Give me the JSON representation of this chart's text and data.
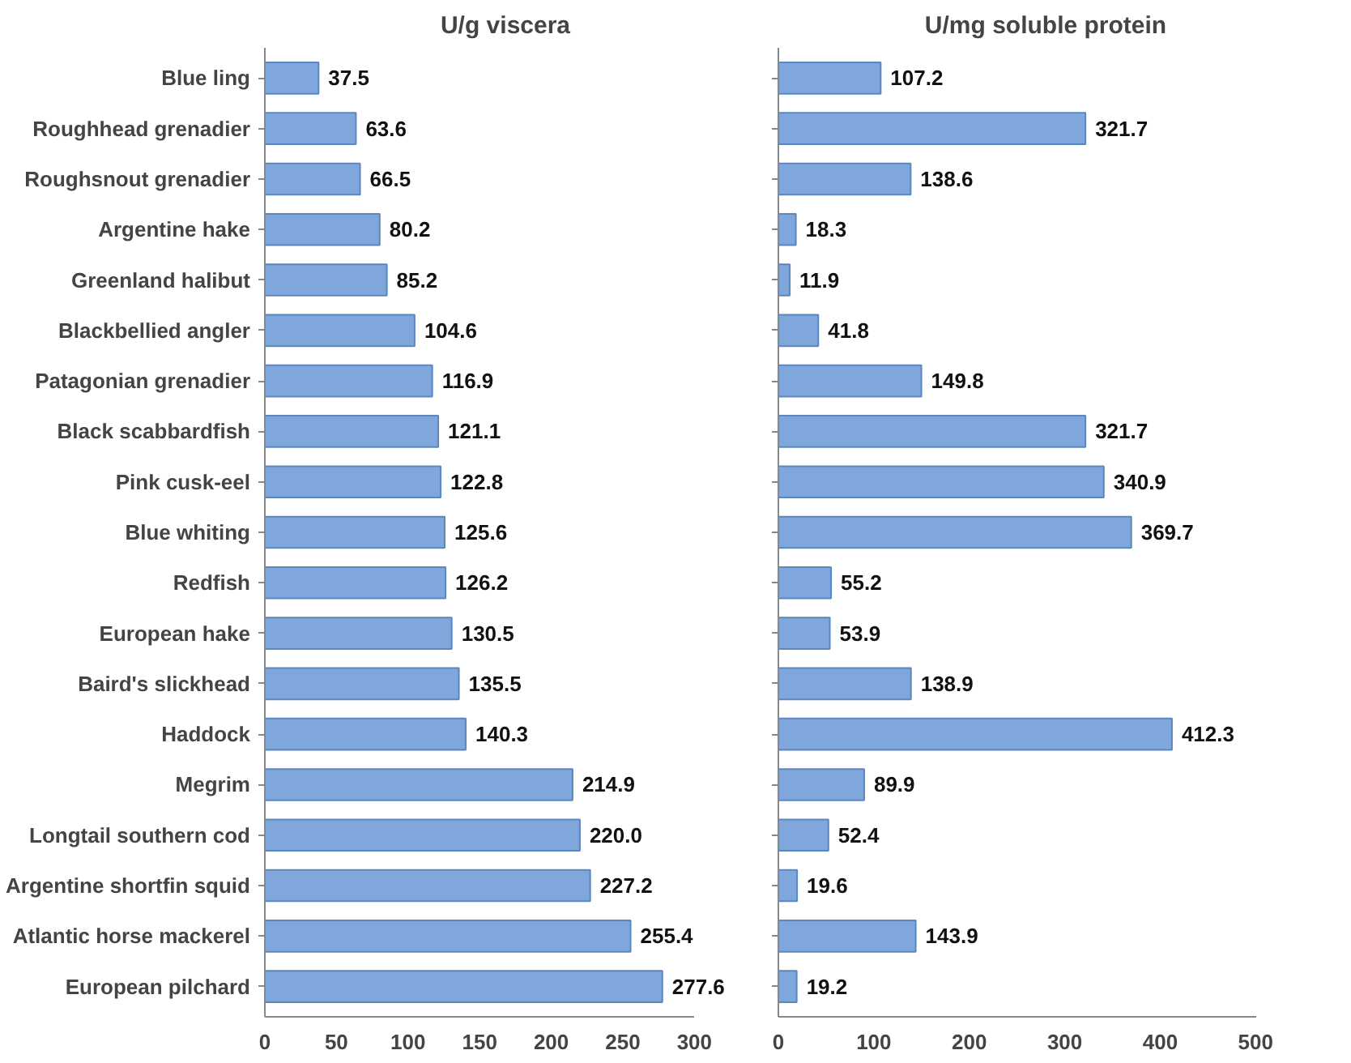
{
  "chart_data": [
    {
      "type": "bar",
      "orientation": "horizontal",
      "title": "U/g viscera",
      "categories": [
        "Blue ling",
        "Roughhead grenadier",
        "Roughsnout grenadier",
        "Argentine hake",
        "Greenland halibut",
        "Blackbellied angler",
        "Patagonian grenadier",
        "Black scabbardfish",
        "Pink cusk-eel",
        "Blue whiting",
        "Redfish",
        "European hake",
        "Baird's slickhead",
        "Haddock",
        "Megrim",
        "Longtail southern cod",
        "Argentine shortfin squid",
        "Atlantic horse mackerel",
        "European pilchard"
      ],
      "values": [
        37.5,
        63.6,
        66.5,
        80.2,
        85.2,
        104.6,
        116.9,
        121.1,
        122.8,
        125.6,
        126.2,
        130.5,
        135.5,
        140.3,
        214.9,
        220.0,
        227.2,
        255.4,
        277.6
      ],
      "value_labels": [
        "37.5",
        "63.6",
        "66.5",
        "80.2",
        "85.2",
        "104.6",
        "116.9",
        "121.1",
        "122.8",
        "125.6",
        "126.2",
        "130.5",
        "135.5",
        "140.3",
        "214.9",
        "220.0",
        "227.2",
        "255.4",
        "277.6"
      ],
      "color": "#7fa7dc",
      "xlim": [
        0,
        300
      ],
      "xticks": [
        0,
        50,
        100,
        150,
        200,
        250,
        300
      ]
    },
    {
      "type": "bar",
      "orientation": "horizontal",
      "title": "U/mg soluble protein",
      "categories": [
        null,
        null,
        null,
        null,
        null,
        null,
        null,
        null,
        null,
        null,
        null,
        null,
        null,
        null,
        null,
        null,
        null,
        null,
        null
      ],
      "values": [
        107.2,
        321.7,
        138.6,
        18.3,
        11.9,
        41.8,
        149.8,
        321.7,
        340.9,
        369.7,
        55.2,
        53.9,
        138.9,
        412.3,
        89.9,
        52.4,
        19.6,
        143.9,
        19.2
      ],
      "value_labels": [
        "107.2",
        "321.7",
        "138.6",
        "18.3",
        "11.9",
        "41.8",
        "149.8",
        "321.7",
        "340.9",
        "369.7",
        "55.2",
        "53.9",
        "138.9",
        "412.3",
        "89.9",
        "52.4",
        "19.6",
        "143.9",
        "19.2"
      ],
      "color": "#7fa7dc",
      "xlim": [
        0,
        500
      ],
      "xticks": [
        0,
        100,
        200,
        300,
        400,
        500
      ]
    }
  ]
}
